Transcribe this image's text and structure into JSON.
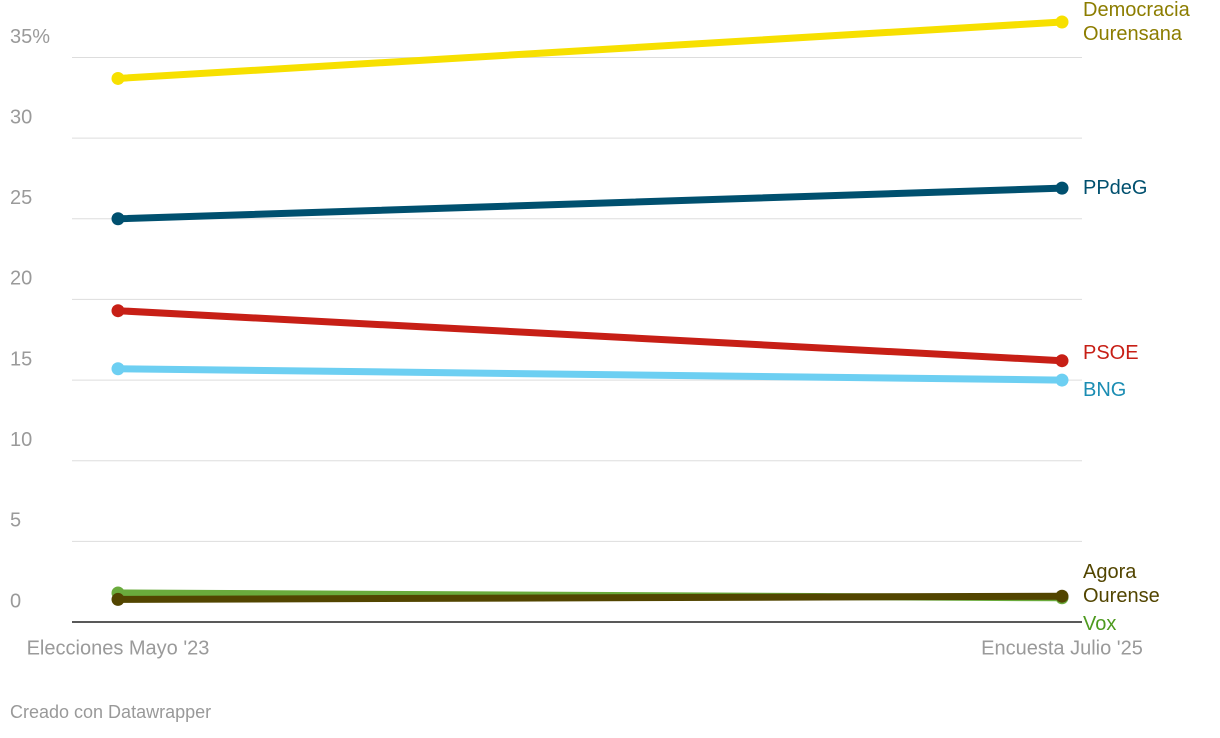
{
  "chart_data": {
    "type": "line",
    "categories": [
      "Elecciones Mayo '23",
      "Encuesta Julio '25"
    ],
    "series": [
      {
        "name": "Democracia Ourensana",
        "color": "#f7e000",
        "label_color": "#8c7d00",
        "values": [
          33.7,
          37.2
        ]
      },
      {
        "name": "PPdeG",
        "color": "#00506f",
        "label_color": "#00506f",
        "values": [
          25.0,
          26.9
        ]
      },
      {
        "name": "PSOE",
        "color": "#c71f16",
        "label_color": "#c71f16",
        "values": [
          19.3,
          16.2
        ]
      },
      {
        "name": "BNG",
        "color": "#6dcff2",
        "label_color": "#1b8db3",
        "values": [
          15.7,
          15.0
        ]
      },
      {
        "name": "Vox",
        "color": "#6aab3c",
        "label_color": "#4e9a1f",
        "values": [
          1.8,
          1.5
        ]
      },
      {
        "name": "Agora Ourense",
        "color": "#524500",
        "label_color": "#524500",
        "values": [
          1.4,
          1.6
        ]
      }
    ],
    "ylim": [
      0,
      37.2
    ],
    "yticks": [
      0,
      5,
      10,
      15,
      20,
      25,
      30,
      {
        "value": 35,
        "label": "35%"
      }
    ],
    "grid": true,
    "footer": "Creado con Datawrapper"
  }
}
